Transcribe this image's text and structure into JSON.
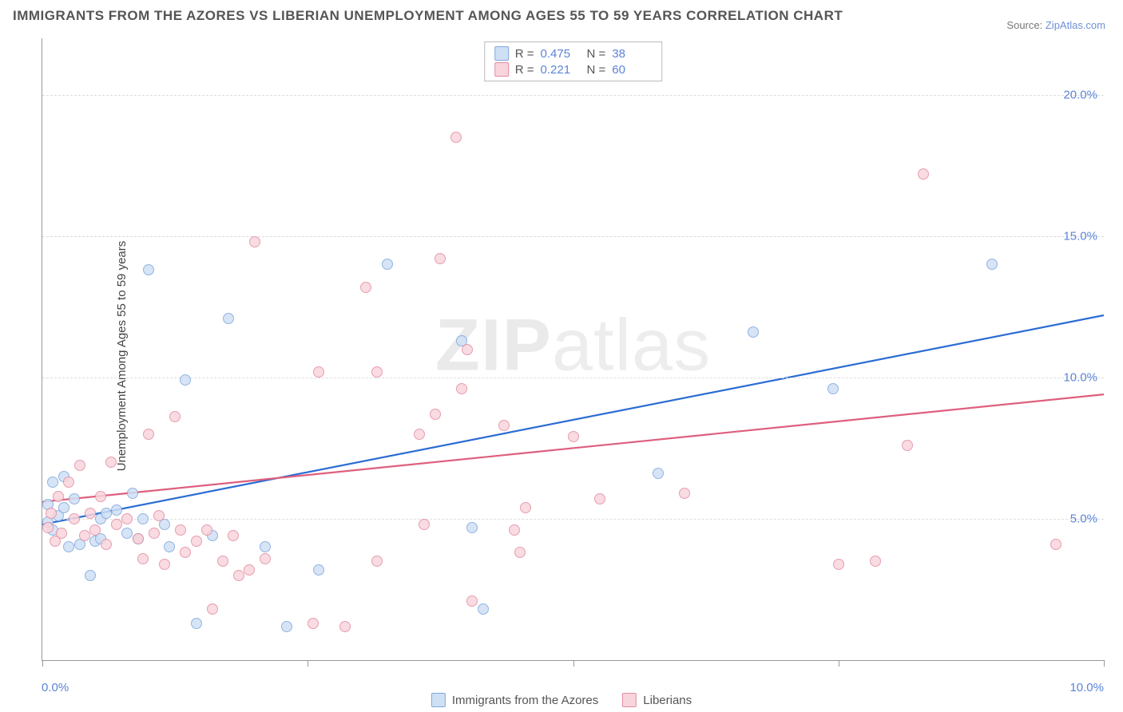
{
  "title": "IMMIGRANTS FROM THE AZORES VS LIBERIAN UNEMPLOYMENT AMONG AGES 55 TO 59 YEARS CORRELATION CHART",
  "source_label": "Source:",
  "source_name": "ZipAtlas.com",
  "ylabel": "Unemployment Among Ages 55 to 59 years",
  "watermark": "ZIPatlas",
  "chart": {
    "type": "scatter",
    "background_color": "#ffffff",
    "grid_color": "#dddddd",
    "axis_color": "#999999",
    "xlim": [
      0,
      10
    ],
    "ylim": [
      0,
      22
    ],
    "ytick_values": [
      5,
      10,
      15,
      20
    ],
    "ytick_labels": [
      "5.0%",
      "10.0%",
      "15.0%",
      "20.0%"
    ],
    "xtick_values": [
      0,
      2.5,
      5,
      7.5,
      10
    ],
    "xtick_label_left": "0.0%",
    "xtick_label_right": "10.0%",
    "tick_label_color": "#5b84d8",
    "tick_label_fontsize": 15,
    "series": [
      {
        "key": "azores",
        "label": "Immigrants from the Azores",
        "R": "0.475",
        "N": "38",
        "fill_color": "#cfe0f5",
        "stroke_color": "#7fa7dd",
        "line_color": "#2b6cd4",
        "line_width": 2.2,
        "trend": {
          "x1": 0,
          "y1": 4.8,
          "x2": 10,
          "y2": 12.2
        },
        "points": [
          [
            0.05,
            5.5
          ],
          [
            0.1,
            4.6
          ],
          [
            0.1,
            6.3
          ],
          [
            0.15,
            5.1
          ],
          [
            0.2,
            6.5
          ],
          [
            0.2,
            5.4
          ],
          [
            0.25,
            4.0
          ],
          [
            0.35,
            4.1
          ],
          [
            0.45,
            3.0
          ],
          [
            0.5,
            4.2
          ],
          [
            0.55,
            5.0
          ],
          [
            0.55,
            4.3
          ],
          [
            0.6,
            5.2
          ],
          [
            0.7,
            5.3
          ],
          [
            0.8,
            4.5
          ],
          [
            0.85,
            5.9
          ],
          [
            0.9,
            4.3
          ],
          [
            0.95,
            5.0
          ],
          [
            1.0,
            13.8
          ],
          [
            1.15,
            4.8
          ],
          [
            1.2,
            4.0
          ],
          [
            1.35,
            9.9
          ],
          [
            1.45,
            1.3
          ],
          [
            1.6,
            4.4
          ],
          [
            1.75,
            12.1
          ],
          [
            2.1,
            4.0
          ],
          [
            2.3,
            1.2
          ],
          [
            2.6,
            3.2
          ],
          [
            3.25,
            14.0
          ],
          [
            3.95,
            11.3
          ],
          [
            4.05,
            4.7
          ],
          [
            4.15,
            1.8
          ],
          [
            5.8,
            6.6
          ],
          [
            6.7,
            11.6
          ],
          [
            7.45,
            9.6
          ],
          [
            8.95,
            14.0
          ],
          [
            0.05,
            4.9
          ],
          [
            0.3,
            5.7
          ]
        ]
      },
      {
        "key": "liberians",
        "label": "Liberians",
        "R": "0.221",
        "N": "60",
        "fill_color": "#f8d5dd",
        "stroke_color": "#e38ca0",
        "line_color": "#de5f7d",
        "line_width": 2.2,
        "trend": {
          "x1": 0,
          "y1": 5.6,
          "x2": 10,
          "y2": 9.4
        },
        "points": [
          [
            0.05,
            4.7
          ],
          [
            0.08,
            5.2
          ],
          [
            0.15,
            5.8
          ],
          [
            0.18,
            4.5
          ],
          [
            0.25,
            6.3
          ],
          [
            0.3,
            5.0
          ],
          [
            0.35,
            6.9
          ],
          [
            0.4,
            4.4
          ],
          [
            0.45,
            5.2
          ],
          [
            0.5,
            4.6
          ],
          [
            0.55,
            5.8
          ],
          [
            0.6,
            4.1
          ],
          [
            0.65,
            7.0
          ],
          [
            0.7,
            4.8
          ],
          [
            0.8,
            5.0
          ],
          [
            0.9,
            4.3
          ],
          [
            0.95,
            3.6
          ],
          [
            1.0,
            8.0
          ],
          [
            1.05,
            4.5
          ],
          [
            1.1,
            5.1
          ],
          [
            1.15,
            3.4
          ],
          [
            1.25,
            8.6
          ],
          [
            1.3,
            4.6
          ],
          [
            1.35,
            3.8
          ],
          [
            1.45,
            4.2
          ],
          [
            1.55,
            4.6
          ],
          [
            1.6,
            1.8
          ],
          [
            1.7,
            3.5
          ],
          [
            1.8,
            4.4
          ],
          [
            1.85,
            3.0
          ],
          [
            1.95,
            3.2
          ],
          [
            2.0,
            14.8
          ],
          [
            2.1,
            3.6
          ],
          [
            2.55,
            1.3
          ],
          [
            2.6,
            10.2
          ],
          [
            2.85,
            1.2
          ],
          [
            3.05,
            13.2
          ],
          [
            3.15,
            3.5
          ],
          [
            3.15,
            10.2
          ],
          [
            3.55,
            8.0
          ],
          [
            3.6,
            4.8
          ],
          [
            3.7,
            8.7
          ],
          [
            3.75,
            14.2
          ],
          [
            3.9,
            18.5
          ],
          [
            4.0,
            11.0
          ],
          [
            3.95,
            9.6
          ],
          [
            4.35,
            8.3
          ],
          [
            4.5,
            3.8
          ],
          [
            4.45,
            4.6
          ],
          [
            4.55,
            5.4
          ],
          [
            5.0,
            7.9
          ],
          [
            5.25,
            5.7
          ],
          [
            6.05,
            5.9
          ],
          [
            7.5,
            3.4
          ],
          [
            7.85,
            3.5
          ],
          [
            8.15,
            7.6
          ],
          [
            8.3,
            17.2
          ],
          [
            9.55,
            4.1
          ],
          [
            4.05,
            2.1
          ],
          [
            0.12,
            4.2
          ]
        ]
      }
    ],
    "legend_top": {
      "R_label": "R =",
      "N_label": "N ="
    }
  }
}
